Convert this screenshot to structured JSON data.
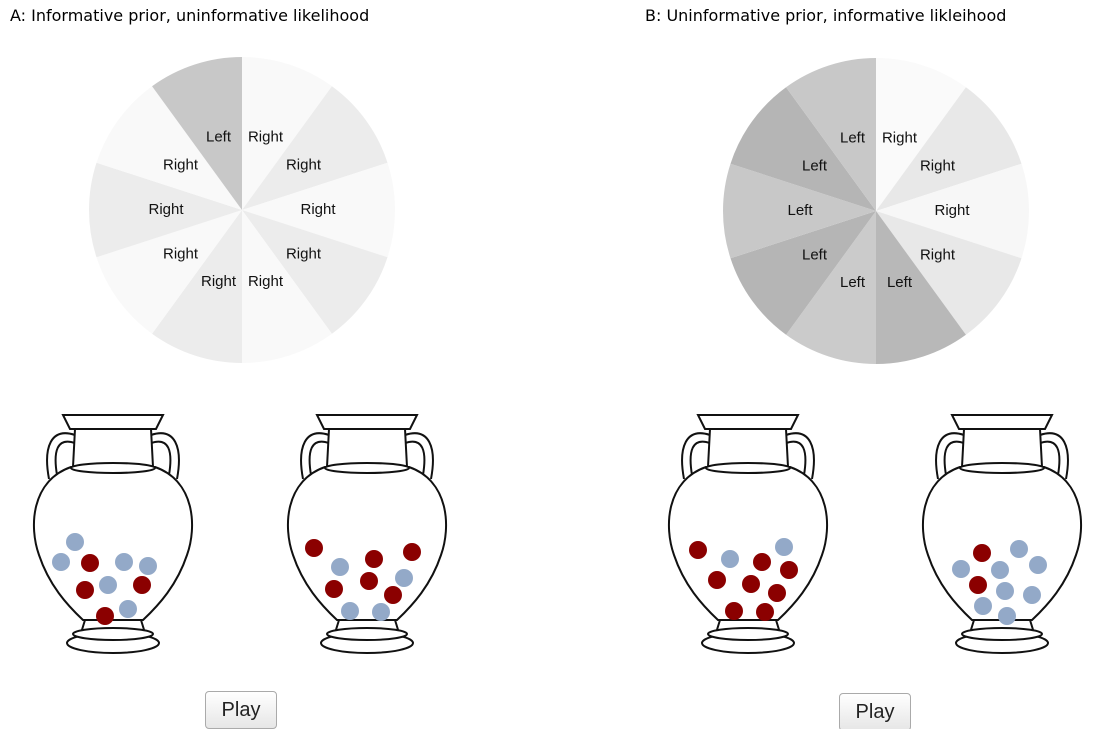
{
  "panels": [
    {
      "title": "A: Informative prior, uninformative likelihood",
      "wheel": [
        {
          "label": "Right",
          "color": "#f9f9f9"
        },
        {
          "label": "Right",
          "color": "#ececec"
        },
        {
          "label": "Right",
          "color": "#f9f9f9"
        },
        {
          "label": "Right",
          "color": "#ececec"
        },
        {
          "label": "Right",
          "color": "#f9f9f9"
        },
        {
          "label": "Right",
          "color": "#ececec"
        },
        {
          "label": "Right",
          "color": "#f9f9f9"
        },
        {
          "label": "Right",
          "color": "#ececec"
        },
        {
          "label": "Right",
          "color": "#f9f9f9"
        },
        {
          "label": "Left",
          "color": "#c8c8c8"
        }
      ],
      "button": "Play"
    },
    {
      "title": "B: Uninformative prior, informative likleihood",
      "wheel": [
        {
          "label": "Right",
          "color": "#fafafa"
        },
        {
          "label": "Right",
          "color": "#e8e8e8"
        },
        {
          "label": "Right",
          "color": "#f7f7f7"
        },
        {
          "label": "Right",
          "color": "#e8e8e8"
        },
        {
          "label": "Left",
          "color": "#b8b8b8"
        },
        {
          "label": "Left",
          "color": "#cbcbcb"
        },
        {
          "label": "Left",
          "color": "#b5b5b5"
        },
        {
          "label": "Left",
          "color": "#c8c8c8"
        },
        {
          "label": "Left",
          "color": "#b5b5b5"
        },
        {
          "label": "Left",
          "color": "#c8c8c8"
        }
      ],
      "button": "Play"
    }
  ]
}
